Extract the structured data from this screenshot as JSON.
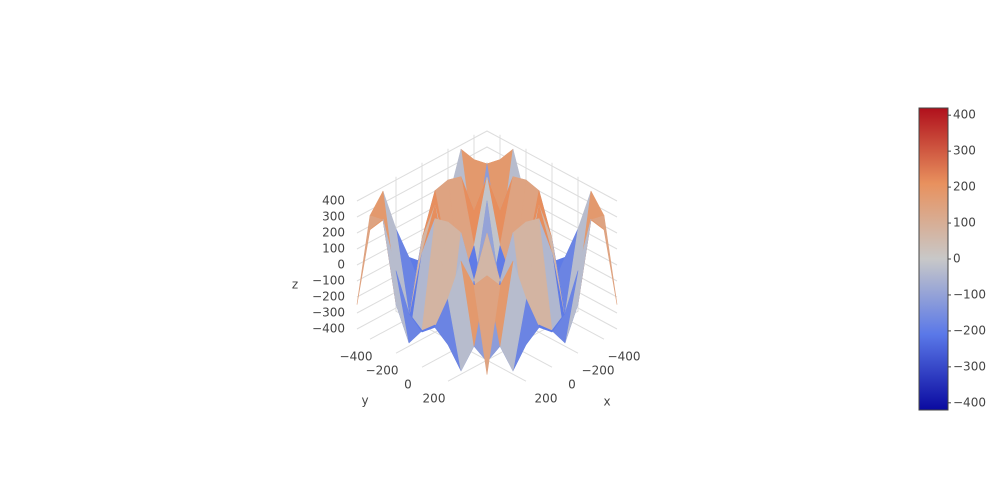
{
  "chart_data": {
    "type": "surface",
    "x_label": "x",
    "y_label": "y",
    "z_label": "z",
    "x": [
      -500,
      -400,
      -300,
      -200,
      -100,
      0,
      100,
      200,
      300,
      400,
      500
    ],
    "y": [
      -500,
      -400,
      -300,
      -200,
      -100,
      0,
      100,
      200,
      300,
      400,
      500
    ],
    "z": [
      [
        -246,
        265,
        374,
        95,
        -127,
        -200,
        -127,
        95,
        374,
        265,
        -246
      ],
      [
        265,
        282,
        -200,
        -399,
        -279,
        -200,
        -279,
        -399,
        -200,
        282,
        265
      ],
      [
        374,
        -200,
        -340,
        119,
        377,
        400,
        377,
        119,
        -340,
        -200,
        374
      ],
      [
        95,
        -399,
        119,
        373,
        -12,
        -200,
        -12,
        373,
        119,
        -399,
        95
      ],
      [
        -127,
        -279,
        377,
        -12,
        -393,
        -200,
        -393,
        -12,
        377,
        -279,
        -127
      ],
      [
        -200,
        -200,
        400,
        -200,
        -200,
        400,
        -200,
        -200,
        400,
        -200,
        -200
      ],
      [
        -127,
        -279,
        377,
        -12,
        -393,
        -200,
        -393,
        -12,
        377,
        -279,
        -127
      ],
      [
        95,
        -399,
        119,
        373,
        -12,
        -200,
        -12,
        373,
        119,
        -399,
        95
      ],
      [
        374,
        -200,
        -340,
        119,
        377,
        400,
        377,
        119,
        -340,
        -200,
        374
      ],
      [
        265,
        282,
        -200,
        -399,
        -279,
        -200,
        -279,
        -399,
        -200,
        282,
        265
      ],
      [
        -246,
        265,
        374,
        95,
        -127,
        -200,
        -127,
        95,
        374,
        265,
        -246
      ]
    ],
    "xlim": [
      -500,
      500
    ],
    "ylim": [
      -500,
      500
    ],
    "zlim": [
      -420,
      420
    ],
    "xticks": [
      {
        "value": -400,
        "label": "−400"
      },
      {
        "value": -200,
        "label": "−200"
      },
      0,
      200
    ],
    "yticks": [
      {
        "value": -400,
        "label": "−400"
      },
      {
        "value": -200,
        "label": "−200"
      },
      0,
      200
    ],
    "zticks": [
      {
        "value": -400,
        "label": "−400"
      },
      {
        "value": -300,
        "label": "−300"
      },
      {
        "value": -200,
        "label": "−200"
      },
      {
        "value": -100,
        "label": "−100"
      },
      0,
      100,
      200,
      300,
      400
    ],
    "clim": [
      -420,
      420
    ],
    "colorscale": [
      "#0a0aa0",
      "#5a78e8",
      "#c8c8c8",
      "#e8915e",
      "#b0101c"
    ],
    "colorbar_ticks": [
      {
        "value": -400,
        "label": "−400"
      },
      {
        "value": -300,
        "label": "−300"
      },
      {
        "value": -200,
        "label": "−200"
      },
      {
        "value": -100,
        "label": "−100"
      },
      0,
      100,
      200,
      300,
      400
    ],
    "grid": true
  }
}
